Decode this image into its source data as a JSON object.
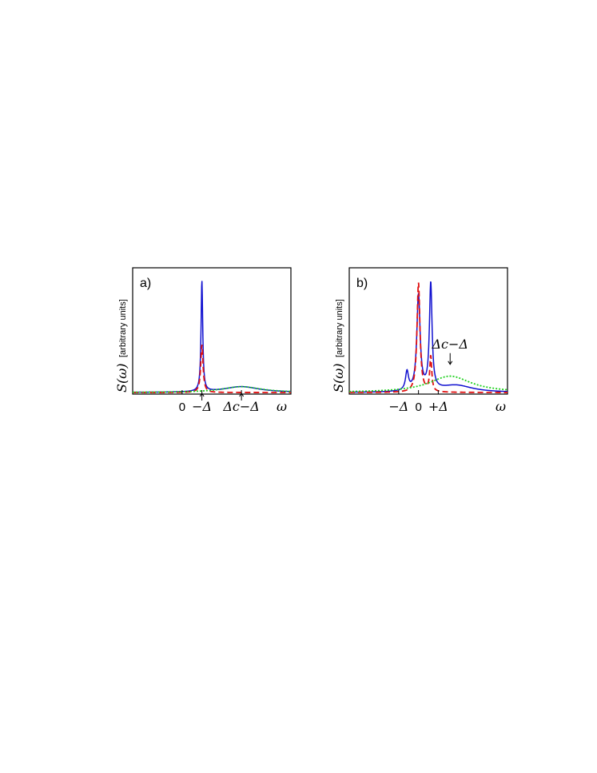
{
  "chart_data": [
    {
      "type": "line",
      "panel_label": "a)",
      "ylabel_math": "S(ω)",
      "ylabel_text": "[arbitrary units]",
      "xlabel": "ω",
      "xlim": [
        -2.5,
        5.5
      ],
      "ylim": [
        0,
        1.0
      ],
      "x_ticks": [
        {
          "x": 0,
          "label": "0"
        },
        {
          "x": 1,
          "label": "−Δ"
        },
        {
          "x": 3,
          "label": "Δc−Δ"
        }
      ],
      "arrows": [
        {
          "x": 1,
          "target": "−Δ"
        },
        {
          "x": 3,
          "target": "Δc−Δ"
        }
      ],
      "series": [
        {
          "color": "#1010d0",
          "style": "solid",
          "components": [
            {
              "center": 1.0,
              "width": 0.05,
              "height": 0.95
            },
            {
              "center": 3.0,
              "width": 1.1,
              "height": 0.05
            }
          ]
        },
        {
          "color": "#e01010",
          "style": "dashed",
          "components": [
            {
              "center": 1.0,
              "width": 0.07,
              "height": 0.41
            }
          ]
        },
        {
          "color": "#20d020",
          "style": "dotted",
          "components": [
            {
              "center": 3.0,
              "width": 1.2,
              "height": 0.05
            }
          ]
        }
      ]
    },
    {
      "type": "line",
      "panel_label": "b)",
      "ylabel_math": "S(ω)",
      "ylabel_text": "[arbitrary units]",
      "xlabel": "ω",
      "xlim": [
        -3.5,
        4.5
      ],
      "ylim": [
        0,
        1.0
      ],
      "x_ticks": [
        {
          "x": -1,
          "label": "−Δ"
        },
        {
          "x": 0,
          "label": "0"
        },
        {
          "x": 1,
          "label": "+Δ"
        }
      ],
      "annotations": [
        {
          "x": 1.6,
          "y": 0.2,
          "label": "Δc−Δ"
        }
      ],
      "series": [
        {
          "color": "#1010d0",
          "style": "solid",
          "components": [
            {
              "center": 0.0,
              "width": 0.1,
              "height": 0.82
            },
            {
              "center": 0.62,
              "width": 0.08,
              "height": 0.91
            },
            {
              "center": -0.58,
              "width": 0.09,
              "height": 0.16
            },
            {
              "center": 1.9,
              "width": 1.0,
              "height": 0.06
            }
          ]
        },
        {
          "color": "#e01010",
          "style": "dashed",
          "components": [
            {
              "center": 0.0,
              "width": 0.09,
              "height": 0.94
            },
            {
              "center": 0.62,
              "width": 0.06,
              "height": 0.3
            }
          ]
        },
        {
          "color": "#20d020",
          "style": "dotted",
          "components": [
            {
              "center": 1.6,
              "width": 1.3,
              "height": 0.14
            }
          ]
        }
      ]
    }
  ]
}
